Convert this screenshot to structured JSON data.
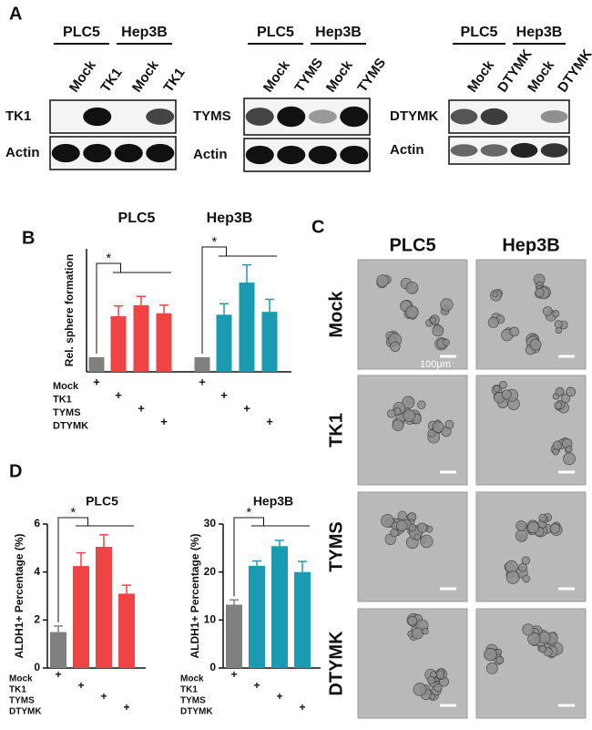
{
  "panel_labels": [
    "A",
    "B",
    "C",
    "D"
  ],
  "blots": [
    {
      "cell_lines": [
        "PLC5",
        "Hep3B"
      ],
      "lanes": [
        "Mock",
        "TK1",
        "Mock",
        "TK1"
      ],
      "rows": [
        "TK1",
        "Actin"
      ]
    },
    {
      "cell_lines": [
        "PLC5",
        "Hep3B"
      ],
      "lanes": [
        "Mock",
        "TYMS",
        "Mock",
        "TYMS"
      ],
      "rows": [
        "TYMS",
        "Actin"
      ]
    },
    {
      "cell_lines": [
        "PLC5",
        "Hep3B"
      ],
      "lanes": [
        "Mock",
        "DTYMK",
        "Mock",
        "DTYMK"
      ],
      "rows": [
        "DTYMK",
        "Actin"
      ]
    }
  ],
  "micrographs": {
    "columns": [
      "PLC5",
      "Hep3B"
    ],
    "rows": [
      "Mock",
      "TK1",
      "TYMS",
      "DTYMK"
    ],
    "scale_label": "100μm"
  },
  "chart_data": [
    {
      "type": "bar",
      "y_label": "Rel. sphere formation",
      "groups": [
        "PLC5",
        "Hep3B"
      ],
      "conditions": [
        "Mock",
        "TK1",
        "TYMS",
        "DTYMK"
      ],
      "marker": "+",
      "annotation": "*",
      "colors": [
        "#808080",
        "#f04343",
        "#1b9bb2"
      ],
      "series": [
        {
          "name": "PLC5",
          "values": [
            1,
            3.8,
            4.55,
            4.0
          ],
          "errors": [
            0,
            0.7,
            0.6,
            0.55
          ]
        },
        {
          "name": "Hep3B",
          "values": [
            1,
            3.9,
            6.1,
            4.1
          ],
          "errors": [
            0,
            0.75,
            1.2,
            0.85
          ]
        }
      ],
      "ylim": [
        0,
        8.4
      ]
    },
    {
      "type": "bar",
      "title": "PLC5",
      "y_label": "ALDH1+ Percentage (%)",
      "conditions": [
        "Mock",
        "TK1",
        "TYMS",
        "DTYMK"
      ],
      "marker": "+",
      "annotation": "*",
      "colors": [
        "#808080",
        "#f04343",
        "#f04343",
        "#f04343"
      ],
      "values": [
        1.5,
        4.25,
        5.05,
        3.1
      ],
      "errors": [
        0.25,
        0.55,
        0.5,
        0.35
      ],
      "ylim": [
        0,
        6
      ],
      "yticks": [
        0,
        2,
        4,
        6
      ]
    },
    {
      "type": "bar",
      "title": "Hep3B",
      "y_label": "ALDH1+ Percentage (%)",
      "conditions": [
        "Mock",
        "TK1",
        "TYMS",
        "DTYMK"
      ],
      "marker": "+",
      "annotation": "*",
      "colors": [
        "#808080",
        "#1b9bb2",
        "#1b9bb2",
        "#1b9bb2"
      ],
      "values": [
        13.2,
        21.3,
        25.4,
        20
      ],
      "errors": [
        1,
        1,
        1.2,
        2.2
      ],
      "ylim": [
        0,
        30
      ],
      "yticks": [
        0,
        10,
        20,
        30
      ]
    }
  ]
}
